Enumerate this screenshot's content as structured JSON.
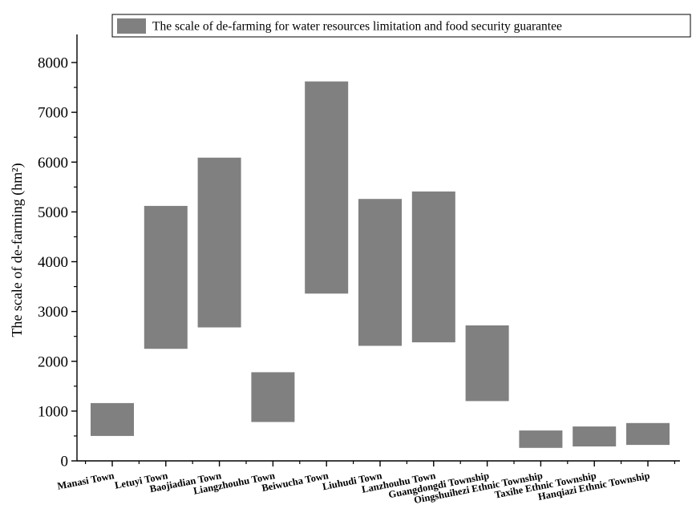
{
  "chart_data": {
    "type": "bar",
    "subtype": "floating-range",
    "categories": [
      "Manasi Town",
      "Letuyi Town",
      "Baojiadian Town",
      "Liangzhouhu Town",
      "Beiwucha Town",
      "Liuhudi Town",
      "Lanzhouhu Town",
      "Guangdongdi Township",
      "Oingshuihezi Ethnic Township",
      "Taxihe Ethnic Township",
      "Hanqiazi Ethnic Township"
    ],
    "series": [
      {
        "name": "The scale of de-farming for water resources limitation and food security guarantee",
        "color": "#808080",
        "low": [
          500,
          2250,
          2680,
          780,
          3360,
          2310,
          2380,
          1200,
          260,
          290,
          320
        ],
        "high": [
          1160,
          5120,
          6090,
          1780,
          7620,
          5260,
          5410,
          2720,
          610,
          690,
          760
        ]
      }
    ],
    "ylabel": "The scale of de-farming (hm²)",
    "xlabel": "",
    "yticks": [
      0,
      1000,
      2000,
      3000,
      4000,
      5000,
      6000,
      7000,
      8000
    ],
    "ylim": [
      0,
      8500
    ],
    "grid": false,
    "legend": {
      "position": "top-right",
      "entries": [
        "The scale of de-farming for water resources limitation and food security guarantee"
      ]
    }
  }
}
